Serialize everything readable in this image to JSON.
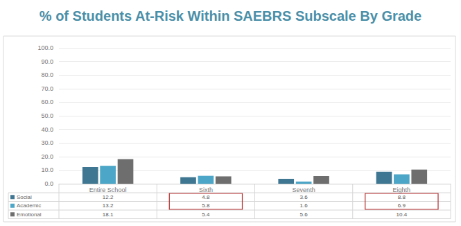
{
  "chart_data": {
    "type": "bar",
    "title": "% of Students At-Risk Within SAEBRS Subscale By Grade",
    "categories": [
      "Entire School",
      "Sixth",
      "Seventh",
      "Eighth"
    ],
    "series": [
      {
        "name": "Social",
        "color": "#3f7691",
        "values": [
          12.2,
          4.8,
          3.6,
          8.8
        ]
      },
      {
        "name": "Academic",
        "color": "#4ba6c7",
        "values": [
          13.2,
          5.8,
          1.6,
          6.9
        ]
      },
      {
        "name": "Emotional",
        "color": "#6e6e6e",
        "values": [
          18.1,
          5.4,
          5.6,
          10.4
        ]
      }
    ],
    "ylim": [
      0,
      100
    ],
    "yticks": [
      {
        "value": 0,
        "label": "0.0"
      },
      {
        "value": 10,
        "label": "10.0"
      },
      {
        "value": 20,
        "label": "20.0"
      },
      {
        "value": 30,
        "label": "30.0"
      },
      {
        "value": 40,
        "label": "40.0"
      },
      {
        "value": 50,
        "label": "50.0"
      },
      {
        "value": 60,
        "label": "60.0"
      },
      {
        "value": 70,
        "label": "70.0"
      },
      {
        "value": 80,
        "label": "80.0"
      },
      {
        "value": 90,
        "label": "90.0"
      },
      {
        "value": 100,
        "label": "100.0"
      }
    ],
    "grid": true
  }
}
